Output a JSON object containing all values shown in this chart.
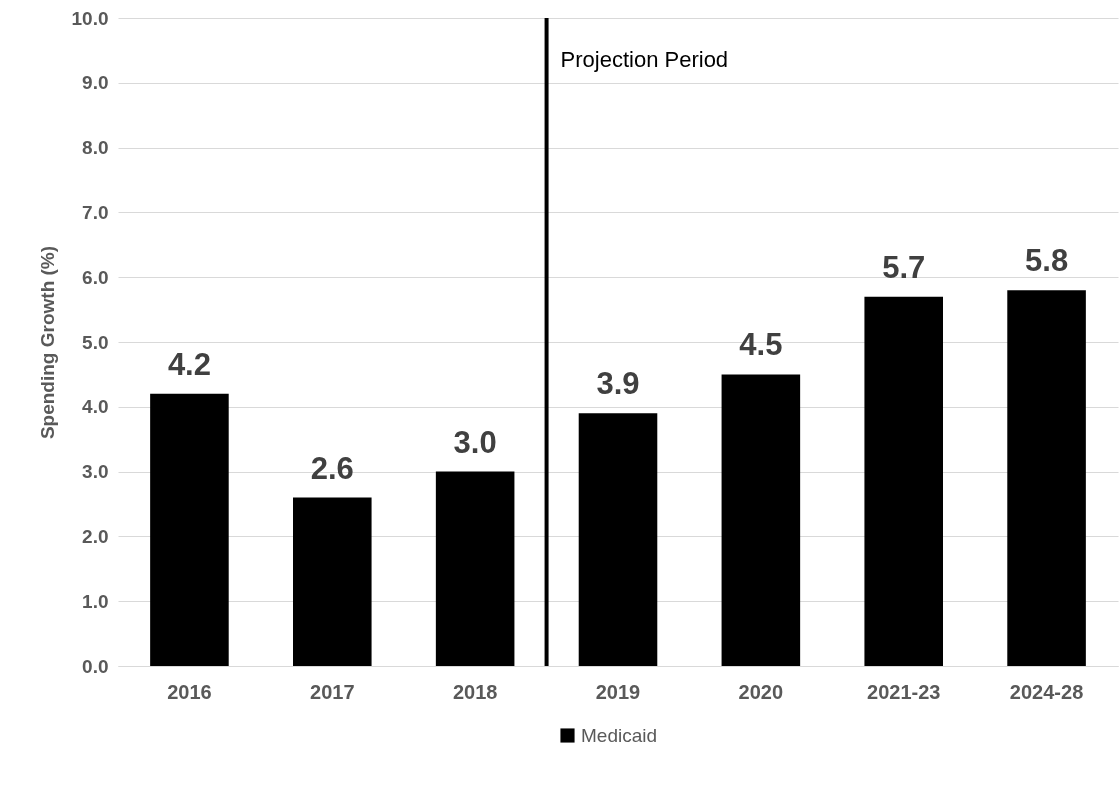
{
  "chart_data": {
    "type": "bar",
    "ylabel": "Spending Growth (%)",
    "categories": [
      "2016",
      "2017",
      "2018",
      "2019",
      "2020",
      "2021-23",
      "2024-28"
    ],
    "series": [
      {
        "name": "Medicaid",
        "color": "#000000",
        "values": [
          4.2,
          2.6,
          3.0,
          3.9,
          4.5,
          5.7,
          5.8
        ]
      }
    ],
    "ylim": [
      0,
      10
    ],
    "yticks": [
      {
        "value": 0,
        "label": "0.0"
      },
      {
        "value": 1,
        "label": "1.0"
      },
      {
        "value": 2,
        "label": "2.0"
      },
      {
        "value": 3,
        "label": "3.0"
      },
      {
        "value": 4,
        "label": "4.0"
      },
      {
        "value": 5,
        "label": "5.0"
      },
      {
        "value": 6,
        "label": "6.0"
      },
      {
        "value": 7,
        "label": "7.0"
      },
      {
        "value": 8,
        "label": "8.0"
      },
      {
        "value": 9,
        "label": "9.0"
      },
      {
        "value": 10,
        "label": "10.0"
      }
    ],
    "ref_lines": [
      {
        "axis": "x",
        "value": "2019",
        "label": "Projection Period",
        "color": "#000000"
      }
    ],
    "value_labels": [
      "4.2",
      "2.6",
      "3.0",
      "3.9",
      "4.5",
      "5.7",
      "5.8"
    ],
    "grid": "y",
    "legend": "bottom"
  }
}
